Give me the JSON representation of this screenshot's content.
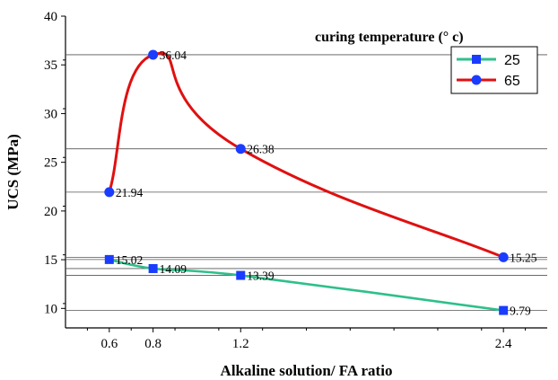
{
  "chart_data": {
    "type": "line",
    "xlabel": "Alkaline solution/ FA ratio",
    "ylabel": "UCS (MPa)",
    "xticks": [
      "0.6",
      "0.8",
      "1.2",
      "2.4"
    ],
    "xlim": [
      0.4,
      2.6
    ],
    "ylim": [
      8,
      40
    ],
    "yticks": [
      "10",
      "15",
      "20",
      "25",
      "30",
      "35",
      "40"
    ],
    "grid": false,
    "legend_position": "top-right",
    "legend_title": "curing temperature (° c)",
    "series": [
      {
        "name": "25",
        "color": "#2ec08a",
        "marker_color": "#1a3cff",
        "marker": "square",
        "x": [
          0.6,
          0.8,
          1.2,
          2.4
        ],
        "y": [
          15.02,
          14.09,
          13.39,
          9.79
        ],
        "labels": [
          "15.02",
          "14.09",
          "13.39",
          "9.79"
        ]
      },
      {
        "name": "65",
        "color": "#e01010",
        "marker_color": "#1a3cff",
        "marker": "circle",
        "x": [
          0.6,
          0.8,
          1.2,
          2.4
        ],
        "y": [
          21.94,
          36.04,
          26.38,
          15.25
        ],
        "labels": [
          "21.94",
          "36.04",
          "26.38",
          "15.25"
        ]
      }
    ]
  }
}
